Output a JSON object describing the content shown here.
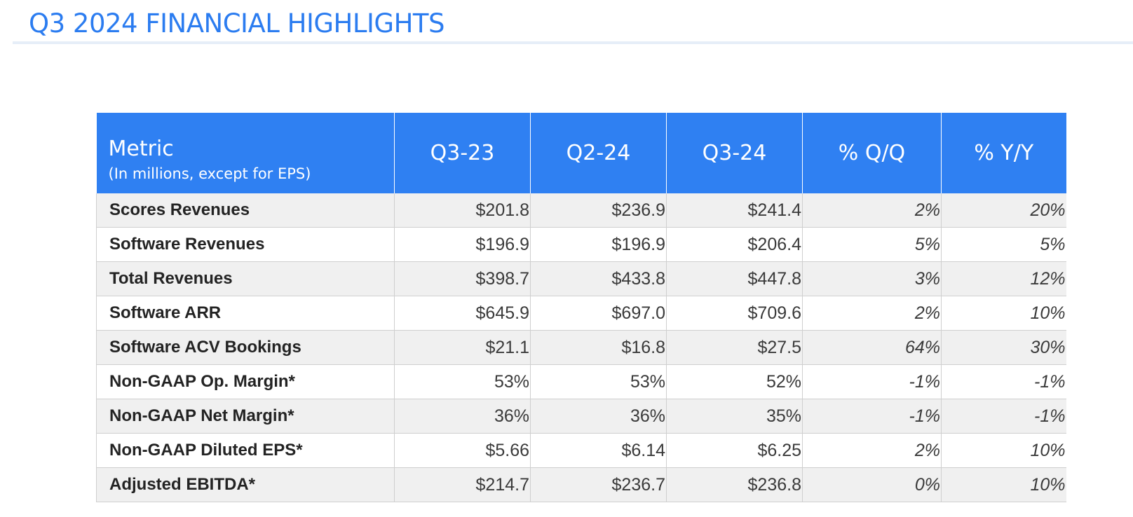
{
  "title": "Q3 2024 FINANCIAL HIGHLIGHTS",
  "table": {
    "header": {
      "metric": "Metric",
      "metric_note": "(In millions, except for EPS)",
      "columns": [
        "Q3-23",
        "Q2-24",
        "Q3-24",
        "% Q/Q",
        "% Y/Y"
      ]
    },
    "rows": [
      {
        "label": "Scores Revenues",
        "values": [
          "$201.8",
          "$236.9",
          "$241.4",
          "2%",
          "20%"
        ]
      },
      {
        "label": "Software Revenues",
        "values": [
          "$196.9",
          "$196.9",
          "$206.4",
          "5%",
          "5%"
        ]
      },
      {
        "label": "Total Revenues",
        "values": [
          "$398.7",
          "$433.8",
          "$447.8",
          "3%",
          "12%"
        ]
      },
      {
        "label": "Software ARR",
        "values": [
          "$645.9",
          "$697.0",
          "$709.6",
          "2%",
          "10%"
        ]
      },
      {
        "label": "Software ACV Bookings",
        "values": [
          "$21.1",
          "$16.8",
          "$27.5",
          "64%",
          "30%"
        ]
      },
      {
        "label": "Non-GAAP Op. Margin*",
        "values": [
          "53%",
          "53%",
          "52%",
          "-1%",
          "-1%"
        ]
      },
      {
        "label": "Non-GAAP Net Margin*",
        "values": [
          "36%",
          "36%",
          "35%",
          "-1%",
          "-1%"
        ]
      },
      {
        "label": "Non-GAAP Diluted EPS*",
        "values": [
          "$5.66",
          "$6.14",
          "$6.25",
          "2%",
          "10%"
        ]
      },
      {
        "label": "Adjusted EBITDA*",
        "values": [
          "$214.7",
          "$236.7",
          "$236.8",
          "0%",
          "10%"
        ]
      }
    ]
  },
  "colors": {
    "title": "#2b7cf0",
    "header_bg": "#2f80f2",
    "row_shade": "#f0f0f0"
  }
}
